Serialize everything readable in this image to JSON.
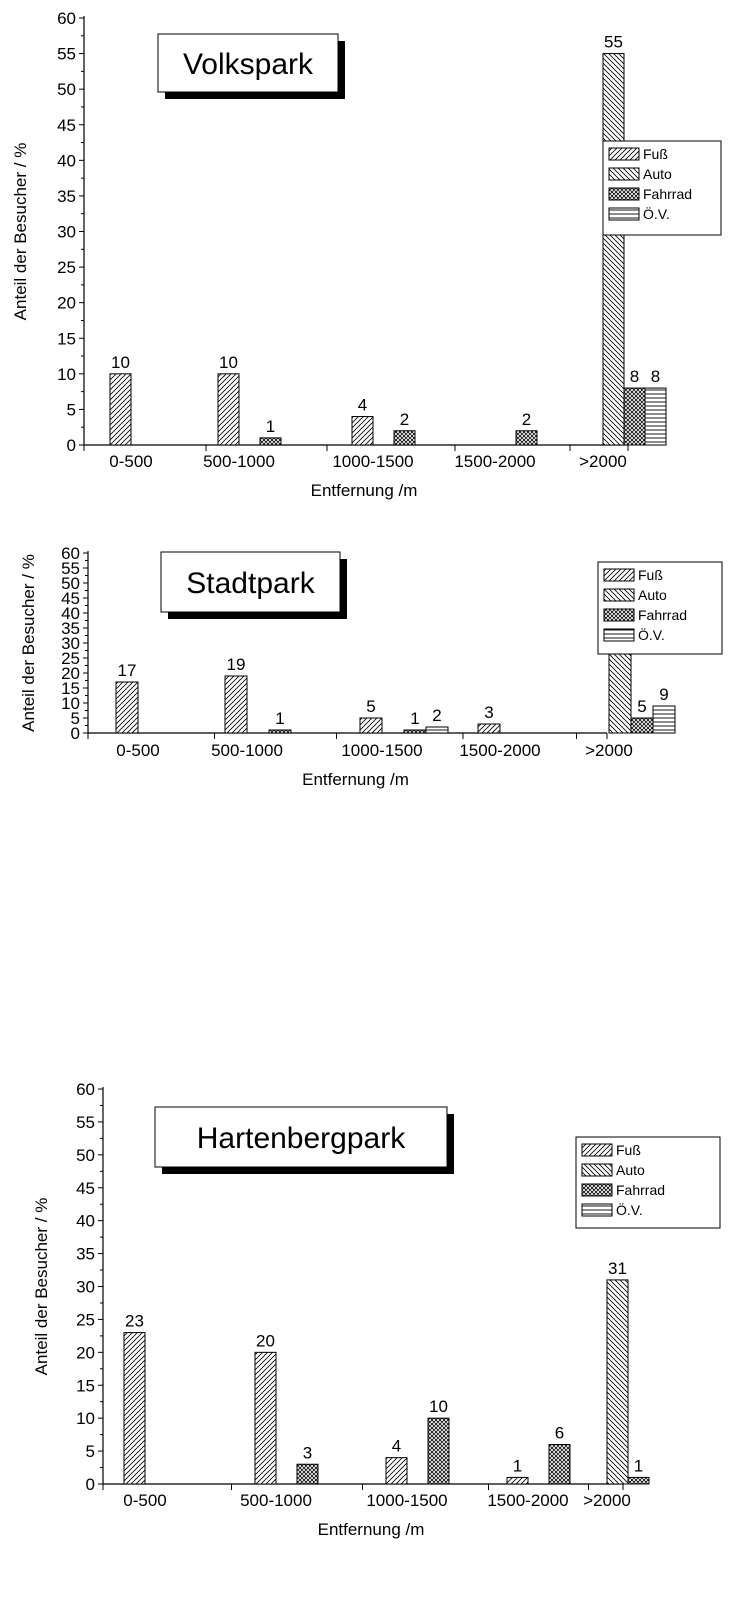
{
  "common": {
    "xlabel": "Entfernung /m",
    "ylabel": "Anteil der Besucher / %",
    "series_names": [
      "Fuß",
      "Auto",
      "Fahrrad",
      "Ö.V."
    ]
  },
  "chart_data": [
    {
      "type": "bar",
      "title": "Volkspark",
      "xlabel": "Entfernung /m",
      "ylabel": "Anteil der Besucher / %",
      "ylim": [
        0,
        60
      ],
      "yticks": [
        0,
        5,
        10,
        15,
        20,
        25,
        30,
        35,
        40,
        45,
        50,
        55,
        60
      ],
      "categories": [
        "0-500",
        "500-1000",
        "1000-1500",
        "1500-2000",
        ">2000"
      ],
      "series": [
        {
          "name": "Fuß",
          "values": [
            10,
            10,
            4,
            0,
            0
          ]
        },
        {
          "name": "Auto",
          "values": [
            0,
            0,
            0,
            0,
            55
          ]
        },
        {
          "name": "Fahrrad",
          "values": [
            0,
            1,
            2,
            2,
            8
          ]
        },
        {
          "name": "Ö.V.",
          "values": [
            0,
            0,
            0,
            0,
            8
          ]
        }
      ],
      "legend": "right"
    },
    {
      "type": "bar",
      "title": "Stadtpark",
      "xlabel": "Entfernung /m",
      "ylabel": "Anteil der Besucher / %",
      "ylim": [
        0,
        60
      ],
      "yticks": [
        0,
        5,
        10,
        15,
        20,
        25,
        30,
        35,
        40,
        45,
        50,
        55,
        60
      ],
      "categories": [
        "0-500",
        "500-1000",
        "1000-1500",
        "1500-2000",
        ">2000"
      ],
      "series": [
        {
          "name": "Fuß",
          "values": [
            17,
            19,
            5,
            3,
            0
          ]
        },
        {
          "name": "Auto",
          "values": [
            0,
            0,
            0,
            0,
            40
          ]
        },
        {
          "name": "Fahrrad",
          "values": [
            0,
            1,
            1,
            0,
            5
          ]
        },
        {
          "name": "Ö.V.",
          "values": [
            0,
            0,
            2,
            0,
            9
          ]
        }
      ],
      "legend": "top-right"
    },
    {
      "type": "bar",
      "title": "Hartenbergpark",
      "xlabel": "Entfernung /m",
      "ylabel": "Anteil der Besucher / %",
      "ylim": [
        0,
        60
      ],
      "yticks": [
        0,
        5,
        10,
        15,
        20,
        25,
        30,
        35,
        40,
        45,
        50,
        55,
        60
      ],
      "categories": [
        "0-500",
        "500-1000",
        "1000-1500",
        "1500-2000",
        ">2000"
      ],
      "series": [
        {
          "name": "Fuß",
          "values": [
            23,
            20,
            4,
            1,
            0
          ]
        },
        {
          "name": "Auto",
          "values": [
            0,
            0,
            0,
            0,
            31
          ]
        },
        {
          "name": "Fahrrad",
          "values": [
            0,
            3,
            10,
            6,
            1
          ]
        },
        {
          "name": "Ö.V.",
          "values": [
            0,
            0,
            0,
            0,
            0
          ]
        }
      ],
      "legend": "top-right"
    }
  ]
}
